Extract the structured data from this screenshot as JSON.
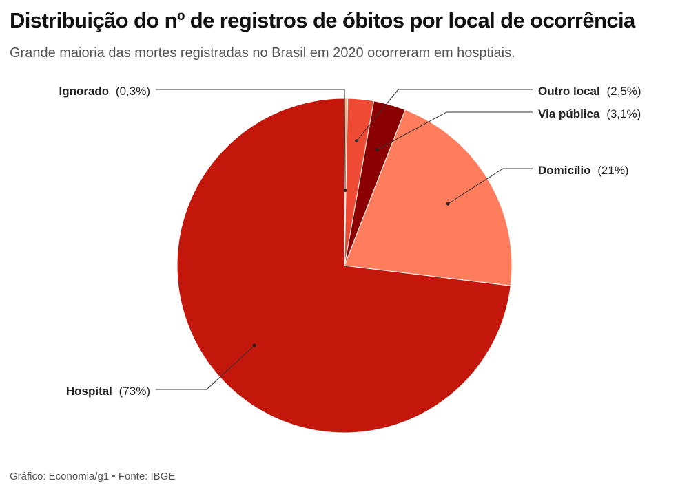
{
  "header": {
    "title": "Distribuição do nº de registros de óbitos por local de ocorrência",
    "subtitle": "Grande maioria das mortes registradas no Brasil em 2020 ocorreram em hosptiais."
  },
  "footer": {
    "source": "Gráfico: Economia/g1 • Fonte: IBGE"
  },
  "chart_data": {
    "type": "pie",
    "start_angle": "top",
    "direction": "clockwise",
    "slices": [
      {
        "name": "Ignorado",
        "value": 0.3,
        "label": "(0,3%)",
        "color": "#f4b183"
      },
      {
        "name": "Outro local",
        "value": 2.5,
        "label": "(2,5%)",
        "color": "#ef4b34"
      },
      {
        "name": "Via pública",
        "value": 3.1,
        "label": "(3,1%)",
        "color": "#8b0000"
      },
      {
        "name": "Domicílio",
        "value": 21,
        "label": "(21%)",
        "color": "#ff7c5c"
      },
      {
        "name": "Hospital",
        "value": 73,
        "label": "(73%)",
        "color": "#c4170c"
      }
    ]
  }
}
